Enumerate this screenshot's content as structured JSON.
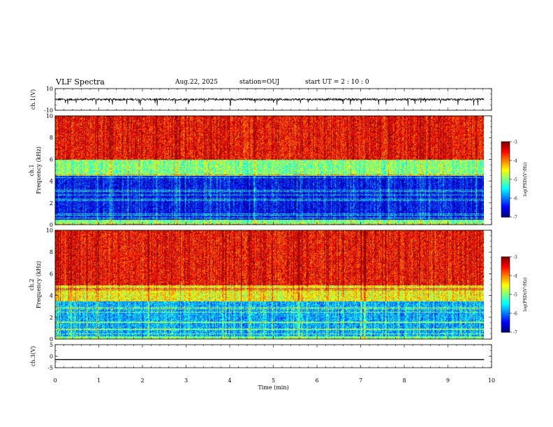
{
  "header": {
    "title": "VLF Spectra",
    "date": "Aug.22, 2025",
    "station": "station=OUJ",
    "start": "start  UT  =   2  : 10 : 0"
  },
  "chart_data": [
    {
      "type": "line",
      "id": "ch1-waveform",
      "ylabel": "ch.1(V)",
      "ylim": [
        -10,
        10
      ],
      "yticks": [
        "10",
        "-10"
      ],
      "series": [
        {
          "name": "ch.1",
          "baseline": 0,
          "noise_amplitude": 1,
          "spike_amplitude": 6
        }
      ]
    },
    {
      "type": "heatmap",
      "id": "ch1-spectrogram",
      "ylabel": "ch.1\nFrequency (kHz)",
      "ylim": [
        0,
        10
      ],
      "yticks": [
        "0",
        "2",
        "4",
        "6",
        "8",
        "10"
      ],
      "colorbar": {
        "label": "log(PSD)(V²/Hz)",
        "min": -7,
        "max": -3,
        "ticks": [
          "-3",
          "-4",
          "-5",
          "-6",
          "-7"
        ]
      },
      "bands": [
        {
          "from_khz": 0,
          "to_khz": 0.5,
          "level": -5.0
        },
        {
          "from_khz": 0.5,
          "to_khz": 4.5,
          "level": -6.5
        },
        {
          "from_khz": 4.5,
          "to_khz": 6.0,
          "level": -5.0
        },
        {
          "from_khz": 6.0,
          "to_khz": 10.0,
          "level": -3.5
        }
      ]
    },
    {
      "type": "heatmap",
      "id": "ch2-spectrogram",
      "ylabel": "ch.2\nFrequency (kHz)",
      "ylim": [
        0,
        10
      ],
      "yticks": [
        "0",
        "2",
        "4",
        "6",
        "8",
        "10"
      ],
      "colorbar": {
        "label": "log(PSD)(V²/Hz)",
        "min": -7,
        "max": -3,
        "ticks": [
          "-3",
          "-4",
          "-5",
          "-6",
          "-7"
        ]
      },
      "bands": [
        {
          "from_khz": 0,
          "to_khz": 0.3,
          "level": -5.0
        },
        {
          "from_khz": 0.3,
          "to_khz": 3.5,
          "level": -5.8
        },
        {
          "from_khz": 3.5,
          "to_khz": 5.0,
          "level": -4.5
        },
        {
          "from_khz": 5.0,
          "to_khz": 10.0,
          "level": -3.5
        }
      ]
    },
    {
      "type": "line",
      "id": "ch3-waveform",
      "ylabel": "ch.3(V)",
      "ylim": [
        -5,
        5
      ],
      "yticks": [
        "5",
        "0",
        "-5"
      ],
      "series": [
        {
          "name": "ch.3",
          "baseline": -1.5
        }
      ]
    }
  ],
  "x_axis": {
    "label": "Time  (min)",
    "xlim": [
      0,
      10
    ],
    "ticks": [
      "0",
      "1",
      "2",
      "3",
      "4",
      "5",
      "6",
      "7",
      "8",
      "9",
      "10"
    ],
    "data_end_min": 9.83
  }
}
